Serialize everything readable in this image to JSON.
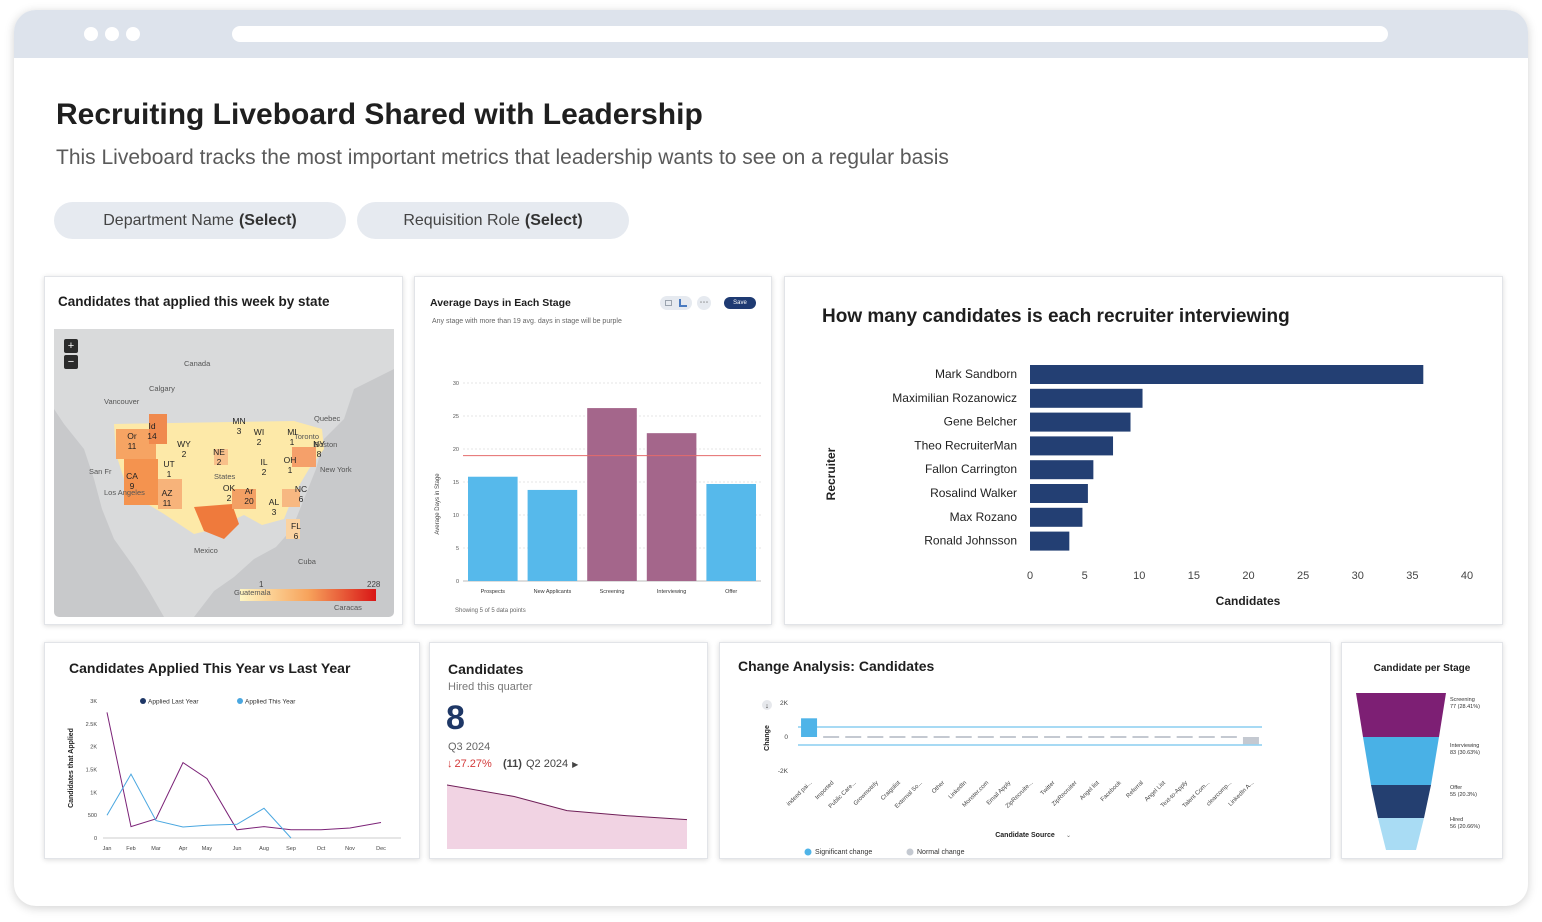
{
  "page": {
    "title": "Recruiting Liveboard Shared with Leadership",
    "subtitle": "This Liveboard tracks the most important metrics that leadership wants to see on a regular basis"
  },
  "filters": [
    {
      "label": "Department Name",
      "value": "(Select)"
    },
    {
      "label": "Requisition Role",
      "value": "(Select)"
    }
  ],
  "map": {
    "title": "Candidates that applied this week by state",
    "zoom_in": "+",
    "zoom_out": "−",
    "place_labels": [
      "Canada",
      "Calgary",
      "Vancouver",
      "Quebec",
      "Toronto",
      "Boston",
      "New York",
      "San Fr",
      "Los Angeles",
      "States",
      "Mexico",
      "Cuba",
      "Guatemala",
      "Caracas"
    ],
    "state_labels": [
      {
        "code": "Or",
        "value": "11"
      },
      {
        "code": "Id",
        "value": "14"
      },
      {
        "code": "WY",
        "value": "2"
      },
      {
        "code": "MN",
        "value": "3"
      },
      {
        "code": "WI",
        "value": "2"
      },
      {
        "code": "MI",
        "value": "1"
      },
      {
        "code": "NE",
        "value": "2"
      },
      {
        "code": "IL",
        "value": "2"
      },
      {
        "code": "OH",
        "value": "1"
      },
      {
        "code": "UT",
        "value": "1"
      },
      {
        "code": "CA",
        "value": "9"
      },
      {
        "code": "AZ",
        "value": "11"
      },
      {
        "code": "OK",
        "value": "2"
      },
      {
        "code": "Ar",
        "value": "20"
      },
      {
        "code": "AL",
        "value": "3"
      },
      {
        "code": "NC",
        "value": "6"
      },
      {
        "code": "FL",
        "value": "6"
      },
      {
        "code": "NY",
        "value": "8"
      }
    ],
    "legend_min": "1",
    "legend_max": "228",
    "colors": {
      "land": "#d9dadb",
      "water": "#c8c9cb",
      "low": "#fde9a8",
      "mid": "#f6a463",
      "high": "#e43a1e"
    }
  },
  "avg_days": {
    "title": "Average Days in Each Stage",
    "subtitle": "Any stage with more than 19 avg. days in stage will be purple",
    "save_label": "Save",
    "footer": "Showing 5 of 5 data points",
    "chart_data": {
      "type": "bar",
      "categories": [
        "Prospects",
        "New Applicants",
        "Screening",
        "Interviewing",
        "Offer"
      ],
      "values": [
        15.8,
        13.8,
        26.2,
        22.4,
        14.7
      ],
      "threshold": 19,
      "ylabel": "Average Days in Stage",
      "ylim": [
        0,
        30
      ],
      "yticks": [
        0,
        5,
        10,
        15,
        20,
        25,
        30
      ],
      "colors": {
        "normal": "#56b9eb",
        "over": "#a4668b",
        "threshold": "#e46b6b"
      }
    }
  },
  "recruiters": {
    "title": "How many candidates is each recruiter interviewing",
    "chart_data": {
      "type": "bar",
      "orientation": "horizontal",
      "categories": [
        "Mark Sandborn",
        "Maximilian Rozanowicz",
        "Gene Belcher",
        "Theo RecruiterMan",
        "Fallon Carrington",
        "Rosalind Walker",
        "Max Rozano",
        "Ronald Johnsson"
      ],
      "values": [
        36,
        10.3,
        9.2,
        7.6,
        5.8,
        5.3,
        4.8,
        3.6
      ],
      "xlabel": "Candidates",
      "ylabel": "Recruiter",
      "xlim": [
        0,
        40
      ],
      "xticks": [
        0,
        5,
        10,
        15,
        20,
        25,
        30,
        35,
        40
      ],
      "color": "#233f73"
    }
  },
  "yoy": {
    "title": "Candidates Applied This Year vs Last Year",
    "chart_data": {
      "type": "line",
      "categories": [
        "Jan",
        "Feb",
        "Mar",
        "Apr",
        "May",
        "Jun",
        "Aug",
        "Sep",
        "Oct",
        "Nov",
        "Dec"
      ],
      "ylabel": "Candidates that Applied",
      "ylim": [
        0,
        3000
      ],
      "yticks": [
        "0",
        "500",
        "1K",
        "1.5K",
        "2K",
        "2.5K",
        "3K"
      ],
      "series": [
        {
          "name": "Applied Last Year",
          "color": "#7b2277",
          "values": [
            2750,
            250,
            420,
            1650,
            1300,
            180,
            250,
            180,
            180,
            220,
            340
          ]
        },
        {
          "name": "Applied This Year",
          "color": "#4aa7e0",
          "values": [
            500,
            1400,
            380,
            240,
            280,
            300,
            650,
            0,
            null,
            null,
            null
          ]
        }
      ]
    }
  },
  "kpi": {
    "title": "Candidates",
    "subtitle": "Hired this quarter",
    "value": "8",
    "period": "Q3 2024",
    "change": "27.27%",
    "prev_value": "(11)",
    "prev_period": "Q2 2024",
    "chart_data": {
      "type": "area",
      "values": [
        1.0,
        0.82,
        0.6,
        0.52,
        0.46
      ],
      "color": "#f1d3e3",
      "line": "#6f1f58"
    }
  },
  "change": {
    "title": "Change Analysis: Candidates",
    "xlabel": "Candidate Source",
    "ylabel": "Change",
    "yticks": [
      "2K",
      "0",
      "-2K"
    ],
    "legend": [
      "Significant change",
      "Normal change"
    ],
    "chart_data": {
      "type": "bar",
      "categories": [
        "indeed pai...",
        "Imported",
        "Public Care...",
        "Growmotely",
        "Craigslist",
        "External So...",
        "Other",
        "LinkedIn",
        "Monster.com",
        "Email Apply",
        "ZipRecruite...",
        "Twitter",
        "ZipRecruiter",
        "Angel list",
        "Facebook",
        "Referral",
        "Angel List",
        "Text-to-Apply",
        "Talent Com...",
        "clearcomp...",
        "LinkedIn A..."
      ],
      "values": [
        1100,
        0,
        0,
        0,
        0,
        0,
        0,
        0,
        0,
        0,
        0,
        0,
        0,
        0,
        0,
        0,
        0,
        0,
        0,
        0,
        -420
      ],
      "ylim": [
        -2000,
        2000
      ],
      "colors": {
        "significant": "#4fb4e8",
        "normal": "#c4c9d1"
      }
    }
  },
  "funnel": {
    "title": "Candidate per Stage",
    "chart_data": {
      "type": "funnel",
      "stages": [
        {
          "name": "Screening",
          "detail": "77 (28.41%)",
          "value": 77,
          "color": "#7d1f74"
        },
        {
          "name": "Interviewing",
          "detail": "83 (30.63%)",
          "value": 83,
          "color": "#49b1e6"
        },
        {
          "name": "Offer",
          "detail": "55 (20.3%)",
          "value": 55,
          "color": "#243f70"
        },
        {
          "name": "Hired",
          "detail": "56 (20.66%)",
          "value": 56,
          "color": "#a9dcf4"
        }
      ]
    }
  }
}
